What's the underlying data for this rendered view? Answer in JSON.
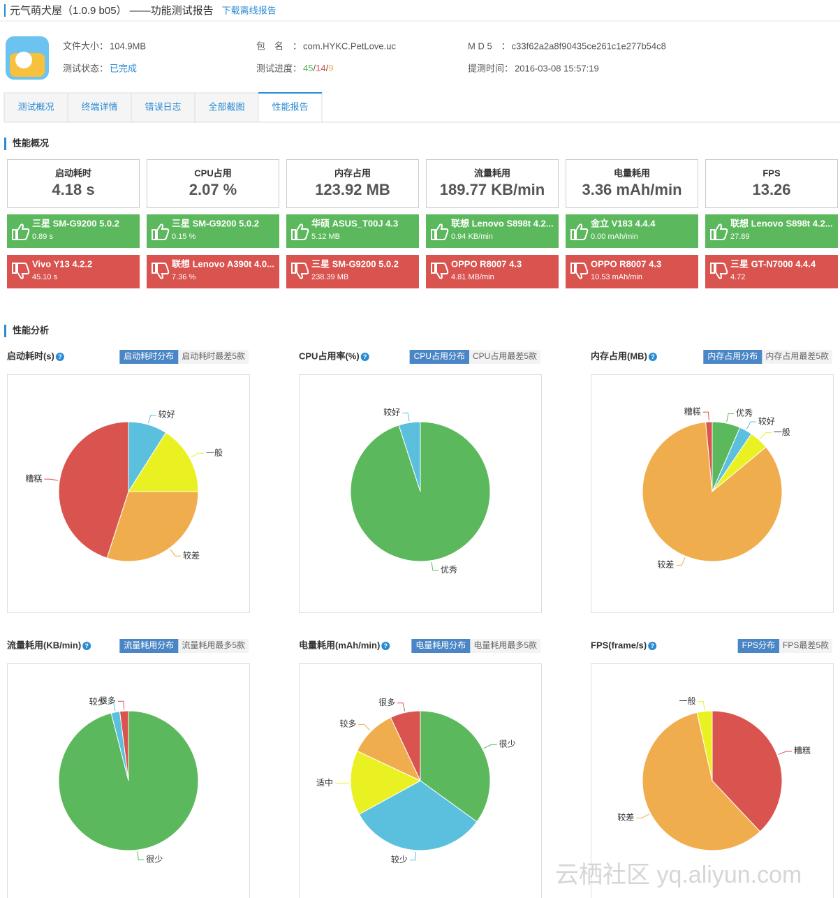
{
  "header": {
    "title": "元气萌犬屋（1.0.9 b05）",
    "subtitle": "——功能测试报告",
    "link": "下载离线报告"
  },
  "info": [
    {
      "label": "文件大小：",
      "value": "104.9MB"
    },
    {
      "label": "包　名　：",
      "value": "com.HYKC.PetLove.uc"
    },
    {
      "label": "M D 5　：",
      "value": "c33f62a2a8f90435ce261c1e277b54c8"
    },
    {
      "label": "测试状态：",
      "value": "已完成"
    },
    {
      "label": "测试进度：",
      "value": [
        "45",
        "/",
        "14",
        "/",
        "9"
      ]
    },
    {
      "label": "提测时间：",
      "value": "2016-03-08 15:57:19"
    }
  ],
  "tabs": [
    "测试概况",
    "终端详情",
    "错误日志",
    "全部截图",
    "性能报告"
  ],
  "overview_title": "性能概况",
  "overview": [
    {
      "title": "启动耗时",
      "value": "4.18 s",
      "best": {
        "device": "三星 SM-G9200 5.0.2",
        "value": "0.89 s"
      },
      "worst": {
        "device": "Vivo Y13 4.2.2",
        "value": "45.10 s"
      }
    },
    {
      "title": "CPU占用",
      "value": "2.07 %",
      "best": {
        "device": "三星 SM-G9200 5.0.2",
        "value": "0.15 %"
      },
      "worst": {
        "device": "联想 Lenovo A390t 4.0...",
        "value": "7.36 %"
      }
    },
    {
      "title": "内存占用",
      "value": "123.92 MB",
      "best": {
        "device": "华硕 ASUS_T00J 4.3",
        "value": "5.12 MB"
      },
      "worst": {
        "device": "三星 SM-G9200 5.0.2",
        "value": "238.39 MB"
      }
    },
    {
      "title": "流量耗用",
      "value": "189.77 KB/min",
      "best": {
        "device": "联想 Lenovo S898t 4.2...",
        "value": "0.94 KB/min"
      },
      "worst": {
        "device": "OPPO R8007 4.3",
        "value": "4.81 MB/min"
      }
    },
    {
      "title": "电量耗用",
      "value": "3.36 mAh/min",
      "best": {
        "device": "金立 V183 4.4.4",
        "value": "0.00 mAh/min"
      },
      "worst": {
        "device": "OPPO R8007 4.3",
        "value": "10.53 mAh/min"
      }
    },
    {
      "title": "FPS",
      "value": "13.26",
      "best": {
        "device": "联想 Lenovo S898t 4.2...",
        "value": "27.89"
      },
      "worst": {
        "device": "三星 GT-N7000 4.4.4",
        "value": "4.72"
      }
    }
  ],
  "analysis_title": "性能分析",
  "help_icon": "?",
  "watermark": "云栖社区 yq.aliyun.com",
  "chart_data": [
    {
      "type": "pie",
      "title": "启动耗时(s)",
      "tabs": [
        "启动耗时分布",
        "启动耗时最差5款"
      ],
      "categories": [
        "较好",
        "一般",
        "较差",
        "糟糕"
      ],
      "values": [
        9,
        16,
        30,
        45
      ],
      "colors": [
        "#5bc0de",
        "#eaf122",
        "#f0ad4e",
        "#d9534f"
      ]
    },
    {
      "type": "pie",
      "title": "CPU占用率(%)",
      "tabs": [
        "CPU占用分布",
        "CPU占用最差5款"
      ],
      "categories": [
        "优秀",
        "较好"
      ],
      "values": [
        95,
        5
      ],
      "colors": [
        "#5cb85c",
        "#5bc0de"
      ]
    },
    {
      "type": "pie",
      "title": "内存占用(MB)",
      "tabs": [
        "内存占用分布",
        "内存占用最差5款"
      ],
      "categories": [
        "优秀",
        "较好",
        "一般",
        "较差",
        "糟糕"
      ],
      "values": [
        6.5,
        3,
        4.5,
        84.5,
        1.5
      ],
      "colors": [
        "#5cb85c",
        "#5bc0de",
        "#eaf122",
        "#f0ad4e",
        "#d9534f"
      ]
    },
    {
      "type": "pie",
      "title": "流量耗用(KB/min)",
      "tabs": [
        "流量耗用分布",
        "流量耗用最多5款"
      ],
      "categories": [
        "很少",
        "较少",
        "很多"
      ],
      "values": [
        96,
        2,
        2
      ],
      "colors": [
        "#5cb85c",
        "#5bc0de",
        "#d9534f"
      ]
    },
    {
      "type": "pie",
      "title": "电量耗用(mAh/min)",
      "tabs": [
        "电量耗用分布",
        "电量耗用最多5款"
      ],
      "categories": [
        "很少",
        "较少",
        "适中",
        "较多",
        "很多"
      ],
      "values": [
        35,
        32,
        15,
        11,
        7
      ],
      "colors": [
        "#5cb85c",
        "#5bc0de",
        "#eaf122",
        "#f0ad4e",
        "#d9534f"
      ]
    },
    {
      "type": "pie",
      "title": "FPS(frame/s)",
      "tabs": [
        "FPS分布",
        "FPS最差5款"
      ],
      "categories": [
        "糟糕",
        "较差",
        "一般"
      ],
      "values": [
        38,
        58.5,
        3.5
      ],
      "colors": [
        "#d9534f",
        "#f0ad4e",
        "#eaf122"
      ]
    }
  ]
}
